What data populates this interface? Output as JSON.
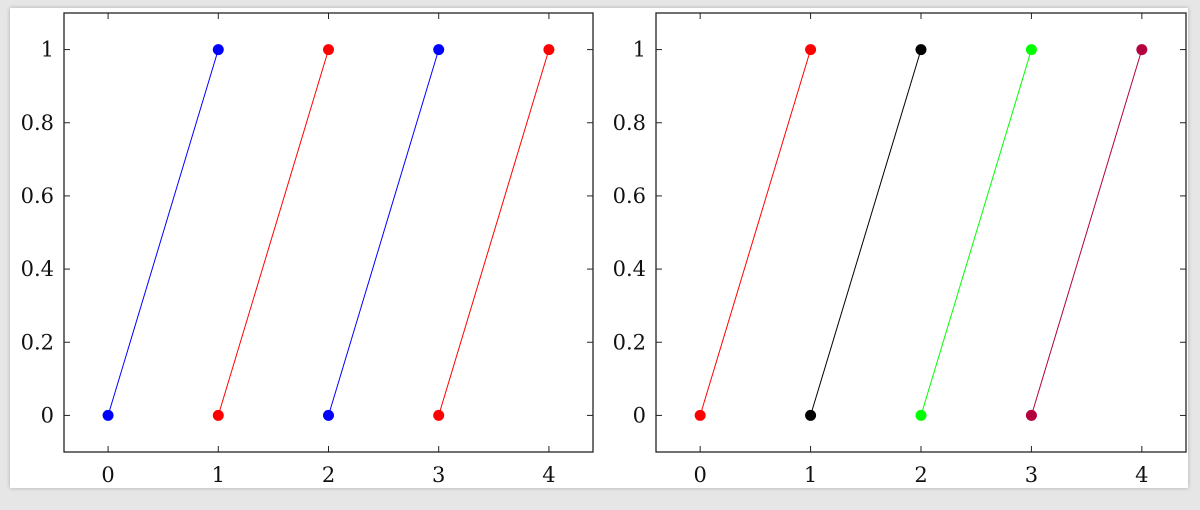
{
  "chart_data": [
    {
      "type": "line",
      "title": "",
      "xlabel": "",
      "ylabel": "",
      "xlim": [
        -0.4,
        4.4
      ],
      "ylim": [
        -0.1,
        1.1
      ],
      "grid": false,
      "x_ticks": [
        0,
        1,
        2,
        3,
        4
      ],
      "x_tick_labels": [
        "0",
        "1",
        "2",
        "3",
        "4"
      ],
      "y_ticks": [
        0,
        0.2,
        0.4,
        0.6,
        0.8,
        1
      ],
      "y_tick_labels": [
        "0",
        "0.2",
        "0.4",
        "0.6",
        "0.8",
        "1"
      ],
      "series": [
        {
          "color": "#0000ff",
          "points": [
            [
              0,
              0
            ],
            [
              1,
              1
            ]
          ]
        },
        {
          "color": "#ff0000",
          "points": [
            [
              1,
              0
            ],
            [
              2,
              1
            ]
          ]
        },
        {
          "color": "#0000ff",
          "points": [
            [
              2,
              0
            ],
            [
              3,
              1
            ]
          ]
        },
        {
          "color": "#ff0000",
          "points": [
            [
              3,
              0
            ],
            [
              4,
              1
            ]
          ]
        }
      ]
    },
    {
      "type": "line",
      "title": "",
      "xlabel": "",
      "ylabel": "",
      "xlim": [
        -0.4,
        4.4
      ],
      "ylim": [
        -0.1,
        1.1
      ],
      "grid": false,
      "x_ticks": [
        0,
        1,
        2,
        3,
        4
      ],
      "x_tick_labels": [
        "0",
        "1",
        "2",
        "3",
        "4"
      ],
      "y_ticks": [
        0,
        0.2,
        0.4,
        0.6,
        0.8,
        1
      ],
      "y_tick_labels": [
        "0",
        "0.2",
        "0.4",
        "0.6",
        "0.8",
        "1"
      ],
      "series": [
        {
          "color": "#ff0000",
          "points": [
            [
              0,
              0
            ],
            [
              1,
              1
            ]
          ]
        },
        {
          "color": "#000000",
          "points": [
            [
              1,
              0
            ],
            [
              2,
              1
            ]
          ]
        },
        {
          "color": "#00ff00",
          "points": [
            [
              2,
              0
            ],
            [
              3,
              1
            ]
          ]
        },
        {
          "color": "#b3003f",
          "points": [
            [
              3,
              0
            ],
            [
              4,
              1
            ]
          ]
        }
      ]
    }
  ]
}
